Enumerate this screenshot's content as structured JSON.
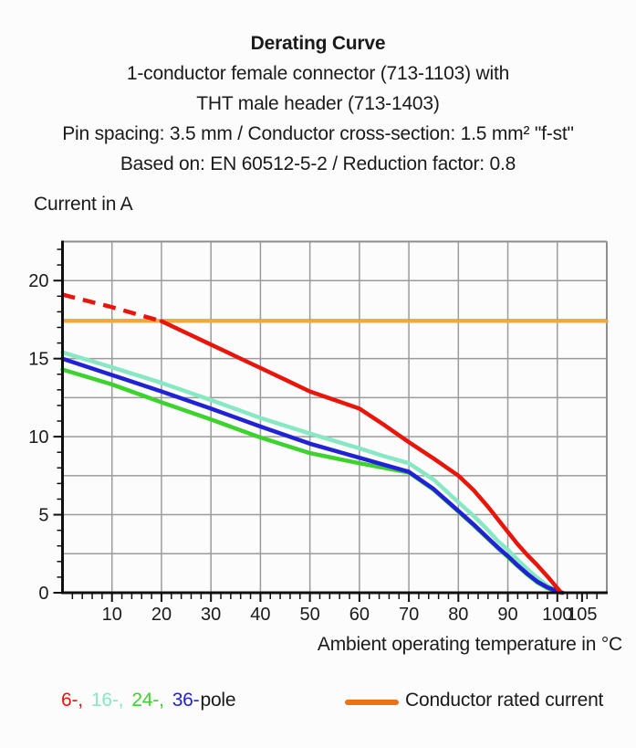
{
  "page": {
    "background": "#fcfcfc",
    "text_color": "#1a1a1a"
  },
  "header": {
    "title": "Derating Curve",
    "subtitle_lines": [
      "1-conductor female connector (713-1103) with",
      "THT male header (713-1403)",
      "Pin spacing: 3.5 mm / Conductor cross-section: 1.5 mm² \"f-st\"",
      "Based on: EN 60512-5-2 / Reduction factor: 0.8"
    ]
  },
  "axes": {
    "y_label": "Current in A",
    "x_label": "Ambient operating temperature in °C"
  },
  "legend": {
    "pole_segments": [
      {
        "text": "6-,",
        "color": "#e8150b"
      },
      {
        "text": "16-,",
        "color": "#87e8c3"
      },
      {
        "text": "24-,",
        "color": "#3cd32e"
      },
      {
        "text": "36-",
        "color": "#2121d5"
      },
      {
        "text": "pole",
        "color": "#1a1a1a"
      }
    ],
    "rated": {
      "label": "Conductor rated current",
      "swatch_color": "#ee7211"
    }
  },
  "chart_data": {
    "type": "line",
    "title": "Derating Curve",
    "xlabel": "Ambient operating temperature in °C",
    "ylabel": "Current in A",
    "xlim": [
      0,
      110
    ],
    "ylim": [
      0,
      22.5
    ],
    "grid": true,
    "grid_color": "#9b9b9b",
    "frame_color": "#8e8e8e",
    "axis_color": "#0f0f0f",
    "tick_label_color": "#1a1a1a",
    "x_ticks_labeled": [
      10,
      20,
      30,
      40,
      50,
      60,
      70,
      80,
      90,
      100,
      105
    ],
    "y_ticks_labeled": [
      0,
      5,
      10,
      15,
      20
    ],
    "x_gridlines": [
      10,
      20,
      30,
      40,
      50,
      60,
      70,
      80,
      90,
      100
    ],
    "y_gridlines": [
      2.5,
      5,
      7.5,
      10,
      12.5,
      15,
      17.5,
      20
    ],
    "x_minor_tick_step": 2,
    "y_minor_tick_step": 1,
    "legend_position": "bottom",
    "series": [
      {
        "name": "Conductor rated current",
        "color": "#f0a843",
        "style": "solid",
        "width": 3.5,
        "points": [
          [
            0,
            17.4
          ],
          [
            110,
            17.4
          ]
        ]
      },
      {
        "name": "16-pole",
        "color": "#87e8c3",
        "style": "solid",
        "width": 4.5,
        "points": [
          [
            0,
            15.4
          ],
          [
            10,
            14.45
          ],
          [
            20,
            13.45
          ],
          [
            30,
            12.35
          ],
          [
            40,
            11.2
          ],
          [
            50,
            10.2
          ],
          [
            60,
            9.25
          ],
          [
            65,
            8.75
          ],
          [
            70,
            8.3
          ],
          [
            75,
            7.25
          ],
          [
            80,
            5.8
          ],
          [
            83,
            4.95
          ],
          [
            86,
            4.0
          ],
          [
            88,
            3.3
          ],
          [
            90,
            2.75
          ],
          [
            92,
            2.1
          ],
          [
            94,
            1.5
          ],
          [
            96,
            0.95
          ],
          [
            98,
            0.45
          ],
          [
            100,
            0.1
          ],
          [
            100.6,
            0
          ]
        ]
      },
      {
        "name": "24-pole",
        "color": "#3cd32e",
        "style": "solid",
        "width": 4.5,
        "points": [
          [
            0,
            14.3
          ],
          [
            10,
            13.35
          ],
          [
            20,
            12.2
          ],
          [
            30,
            11.1
          ],
          [
            40,
            9.95
          ],
          [
            50,
            8.95
          ],
          [
            60,
            8.3
          ],
          [
            65,
            8.0
          ],
          [
            70,
            7.7
          ],
          [
            75,
            6.6
          ],
          [
            80,
            5.2
          ],
          [
            83,
            4.35
          ],
          [
            86,
            3.45
          ],
          [
            88,
            2.85
          ],
          [
            90,
            2.3
          ],
          [
            92,
            1.7
          ],
          [
            94,
            1.15
          ],
          [
            96,
            0.65
          ],
          [
            98,
            0.3
          ],
          [
            100,
            0.05
          ],
          [
            101,
            0
          ]
        ]
      },
      {
        "name": "36-pole",
        "color": "#2121d5",
        "style": "solid",
        "width": 4.5,
        "points": [
          [
            0,
            15.0
          ],
          [
            10,
            13.95
          ],
          [
            20,
            12.9
          ],
          [
            30,
            11.8
          ],
          [
            40,
            10.65
          ],
          [
            50,
            9.55
          ],
          [
            60,
            8.65
          ],
          [
            65,
            8.2
          ],
          [
            70,
            7.75
          ],
          [
            75,
            6.65
          ],
          [
            80,
            5.25
          ],
          [
            83,
            4.4
          ],
          [
            86,
            3.5
          ],
          [
            88,
            2.9
          ],
          [
            90,
            2.35
          ],
          [
            92,
            1.75
          ],
          [
            94,
            1.2
          ],
          [
            96,
            0.7
          ],
          [
            98,
            0.35
          ],
          [
            100,
            0.1
          ],
          [
            101.1,
            0
          ]
        ]
      },
      {
        "name": "6-pole (below rated, dashed)",
        "color": "#e8150b",
        "style": "dashed",
        "width": 4.5,
        "points": [
          [
            0,
            19.1
          ],
          [
            5,
            18.7
          ],
          [
            10,
            18.3
          ],
          [
            15,
            17.85
          ],
          [
            20,
            17.4
          ]
        ]
      },
      {
        "name": "6-pole",
        "color": "#e8150b",
        "style": "solid",
        "width": 4.5,
        "points": [
          [
            20,
            17.4
          ],
          [
            25,
            16.65
          ],
          [
            30,
            15.9
          ],
          [
            35,
            15.15
          ],
          [
            40,
            14.4
          ],
          [
            45,
            13.65
          ],
          [
            50,
            12.9
          ],
          [
            55,
            12.35
          ],
          [
            60,
            11.8
          ],
          [
            65,
            10.75
          ],
          [
            70,
            9.65
          ],
          [
            75,
            8.6
          ],
          [
            80,
            7.5
          ],
          [
            83,
            6.6
          ],
          [
            86,
            5.5
          ],
          [
            88,
            4.7
          ],
          [
            90,
            3.9
          ],
          [
            92,
            3.1
          ],
          [
            94,
            2.4
          ],
          [
            96,
            1.75
          ],
          [
            98,
            1.05
          ],
          [
            100,
            0.3
          ],
          [
            100.8,
            0
          ]
        ]
      }
    ]
  }
}
